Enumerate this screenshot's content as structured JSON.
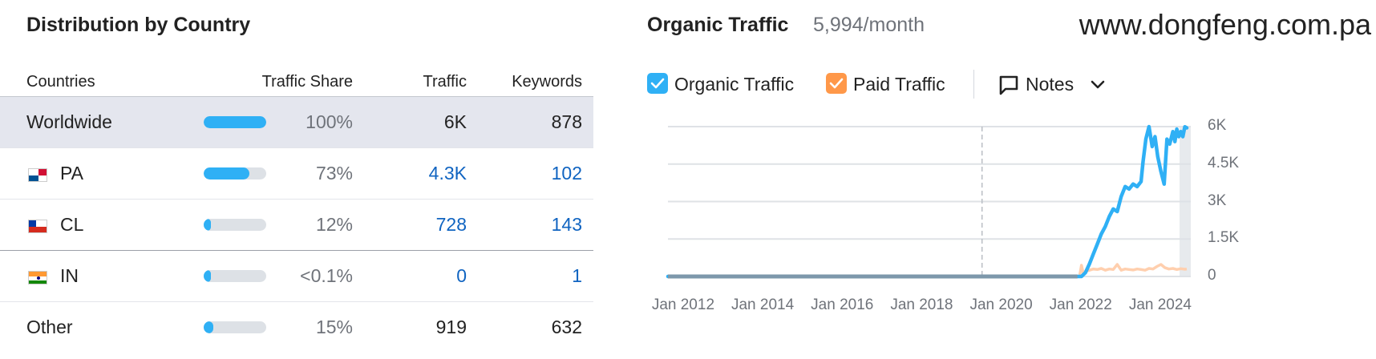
{
  "distribution": {
    "title": "Distribution by Country",
    "headers": {
      "countries": "Countries",
      "traffic_share": "Traffic Share",
      "traffic": "Traffic",
      "keywords": "Keywords"
    },
    "rows": [
      {
        "name": "Worldwide",
        "flag": "",
        "share_pct": 100,
        "share": "100%",
        "traffic": "6K",
        "keywords": "878"
      },
      {
        "name": "PA",
        "flag": "panama-flag-icon",
        "share_pct": 73,
        "share": "73%",
        "traffic": "4.3K",
        "keywords": "102"
      },
      {
        "name": "CL",
        "flag": "chile-flag-icon",
        "share_pct": 12,
        "share": "12%",
        "traffic": "728",
        "keywords": "143"
      },
      {
        "name": "IN",
        "flag": "india-flag-icon",
        "share_pct": 0.1,
        "share": "<0.1%",
        "traffic": "0",
        "keywords": "1"
      },
      {
        "name": "Other",
        "flag": "",
        "share_pct": 15,
        "share": "15%",
        "traffic": "919",
        "keywords": "632"
      }
    ],
    "colors": {
      "bar_fill": "#2fb0f5",
      "bar_track": "#dde1e6",
      "link": "#1064c1",
      "selected_row": "#e4e6ee"
    }
  },
  "organic": {
    "title": "Organic Traffic",
    "value": "5,994/month",
    "domain": "www.dongfeng.com.pa",
    "legend": {
      "organic": "Organic Traffic",
      "paid": "Paid Traffic",
      "notes": "Notes"
    },
    "icons": {
      "checkbox": "check-icon",
      "notes": "comment-icon",
      "dropdown": "chevron-down-icon"
    },
    "colors": {
      "organic": "#2fb0f5",
      "paid": "#ff9849"
    }
  },
  "chart_data": {
    "type": "line",
    "title": "",
    "xlabel": "",
    "ylabel": "",
    "x_ticks": [
      "Jan 2012",
      "Jan 2014",
      "Jan 2016",
      "Jan 2018",
      "Jan 2020",
      "Jan 2022",
      "Jan 2024"
    ],
    "y_ticks": [
      "0",
      "1.5K",
      "3K",
      "4.5K",
      "6K"
    ],
    "ylim": [
      0,
      6000
    ],
    "xlim": [
      2011.6,
      2024.75
    ],
    "grid": true,
    "marker_line_x": 2019.5,
    "series": [
      {
        "name": "Organic Traffic",
        "color": "#2fb0f5",
        "x": [
          2011.6,
          2021.9,
          2022.0,
          2022.1,
          2022.2,
          2022.3,
          2022.4,
          2022.5,
          2022.6,
          2022.7,
          2022.8,
          2022.9,
          2023.0,
          2023.1,
          2023.2,
          2023.3,
          2023.4,
          2023.5,
          2023.55,
          2023.62,
          2023.7,
          2023.78,
          2023.85,
          2023.92,
          2024.0,
          2024.08,
          2024.15,
          2024.22,
          2024.3,
          2024.35,
          2024.4,
          2024.45,
          2024.5,
          2024.55,
          2024.6,
          2024.65
        ],
        "y": [
          0,
          0,
          0,
          150,
          500,
          900,
          1300,
          1700,
          2000,
          2400,
          2700,
          2600,
          3200,
          3600,
          3500,
          3700,
          3600,
          3800,
          4600,
          5500,
          6000,
          5200,
          5600,
          4800,
          4200,
          3700,
          5500,
          5300,
          5800,
          5400,
          5900,
          5600,
          5800,
          5600,
          5994,
          5950
        ]
      },
      {
        "name": "Paid Traffic",
        "color": "#ff9849",
        "x": [
          2011.6,
          2021.95,
          2022.0,
          2022.05,
          2022.1,
          2022.2,
          2022.3,
          2022.4,
          2022.5,
          2022.6,
          2022.7,
          2022.8,
          2022.9,
          2023.0,
          2023.1,
          2023.2,
          2023.3,
          2023.4,
          2023.5,
          2023.6,
          2023.7,
          2023.8,
          2023.9,
          2024.0,
          2024.1,
          2024.2,
          2024.3,
          2024.4,
          2024.5,
          2024.6,
          2024.65
        ],
        "y": [
          0,
          0,
          450,
          100,
          200,
          250,
          300,
          280,
          320,
          250,
          300,
          280,
          480,
          250,
          300,
          280,
          260,
          300,
          280,
          250,
          320,
          300,
          400,
          480,
          350,
          300,
          320,
          280,
          310,
          290,
          300
        ]
      }
    ]
  }
}
